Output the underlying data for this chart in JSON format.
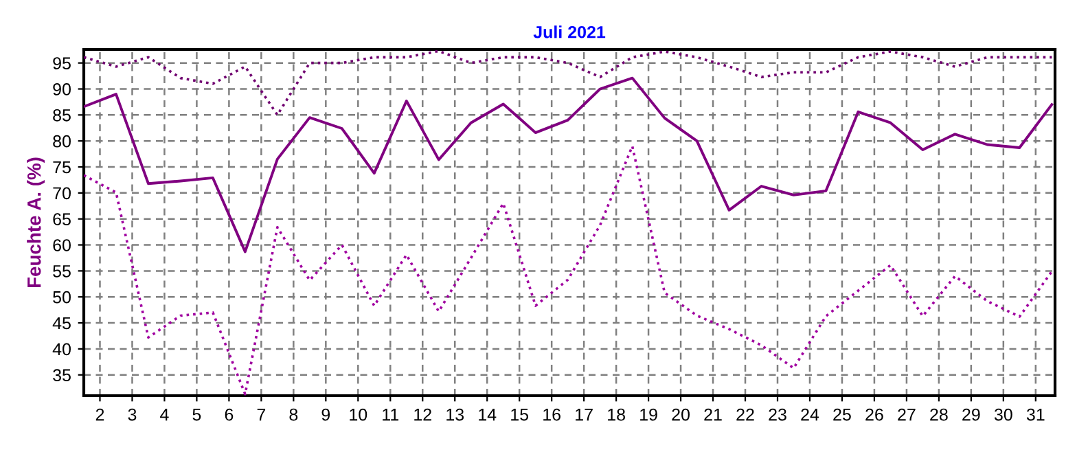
{
  "chart_data": {
    "type": "line",
    "title": "Juli 2021",
    "ylabel": "Feuchte A. (%)",
    "x": [
      1.5,
      2.5,
      3.5,
      4.5,
      5.5,
      6.5,
      7.5,
      8.5,
      9.5,
      10.5,
      11.5,
      12.5,
      13.5,
      14.5,
      15.5,
      16.5,
      17.5,
      18.5,
      19.5,
      20.5,
      21.5,
      22.5,
      23.5,
      24.5,
      25.5,
      26.5,
      27.5,
      28.5,
      29.5,
      30.5,
      31.5
    ],
    "series": [
      {
        "color": "#700070",
        "line_style": "dotted",
        "values": [
          96.1,
          94.3,
          96.1,
          92.1,
          91,
          94.3,
          85,
          95,
          95,
          96.1,
          96.1,
          97.3,
          95,
          96.1,
          96.1,
          95,
          92.3,
          96.1,
          97.2,
          96.1,
          94.3,
          92.3,
          93.2,
          93.2,
          96.1,
          97.2,
          96.1,
          94.3,
          96.1,
          96.1,
          96.1
        ]
      },
      {
        "color": "#800080",
        "line_style": "solid",
        "values": [
          86.6,
          89,
          71.8,
          72.3,
          72.9,
          58.7,
          76.5,
          84.5,
          82.4,
          73.8,
          87.7,
          76.4,
          83.5,
          87.1,
          81.6,
          84,
          90,
          92.1,
          84.4,
          80,
          66.7,
          71.3,
          69.6,
          70.4,
          85.6,
          83.5,
          78.3,
          81.3,
          79.3,
          78.7,
          87
        ]
      },
      {
        "color": "#a000a0",
        "line_style": "dotted",
        "values": [
          73.4,
          70.1,
          42.2,
          46.4,
          47,
          31.3,
          63.4,
          53.2,
          60,
          48.3,
          58.1,
          47.2,
          57.5,
          68,
          48.3,
          53.3,
          63.8,
          79,
          50.8,
          46.4,
          43.8,
          40.7,
          36.3,
          46.3,
          51.2,
          56.1,
          46.3,
          54,
          49.2,
          46.2,
          54.9
        ]
      }
    ],
    "xlim": [
      1.5,
      31.6
    ],
    "ylim": [
      31,
      97.6
    ],
    "xticks": [
      2,
      3,
      4,
      5,
      6,
      7,
      8,
      9,
      10,
      11,
      12,
      13,
      14,
      15,
      16,
      17,
      18,
      19,
      20,
      21,
      22,
      23,
      24,
      25,
      26,
      27,
      28,
      29,
      30,
      31
    ],
    "yticks": [
      35,
      40,
      45,
      50,
      55,
      60,
      65,
      70,
      75,
      80,
      85,
      90,
      95
    ],
    "grid": true,
    "marker": "none"
  }
}
